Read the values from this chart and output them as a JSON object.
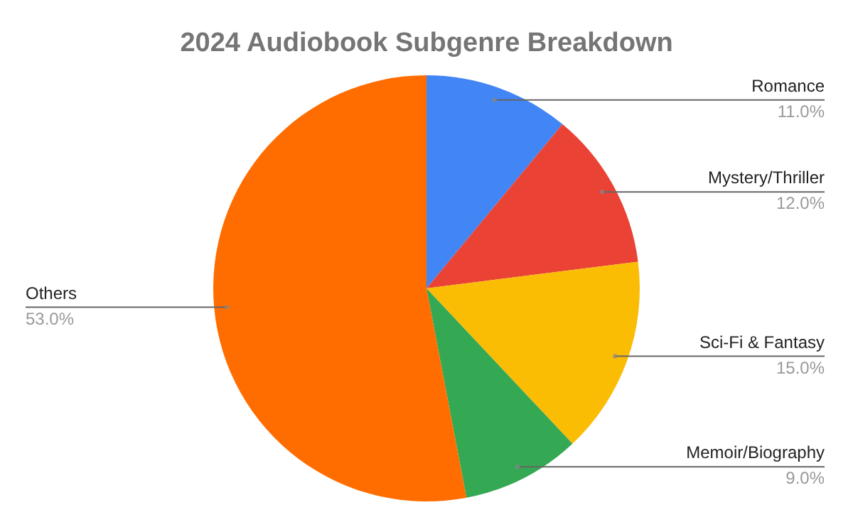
{
  "chart_data": {
    "type": "pie",
    "title": "2024 Audiobook Subgenre Breakdown",
    "categories": [
      "Romance",
      "Mystery/Thriller",
      "Sci-Fi & Fantasy",
      "Memoir/Biography",
      "Others"
    ],
    "values": [
      11,
      12,
      15,
      9,
      53
    ],
    "colors": [
      "#4285f4",
      "#ea4335",
      "#fbbc04",
      "#34a853",
      "#ff6d01"
    ],
    "value_labels": [
      "11.0%",
      "12.0%",
      "15.0%",
      "9.0%",
      "53.0%"
    ]
  }
}
